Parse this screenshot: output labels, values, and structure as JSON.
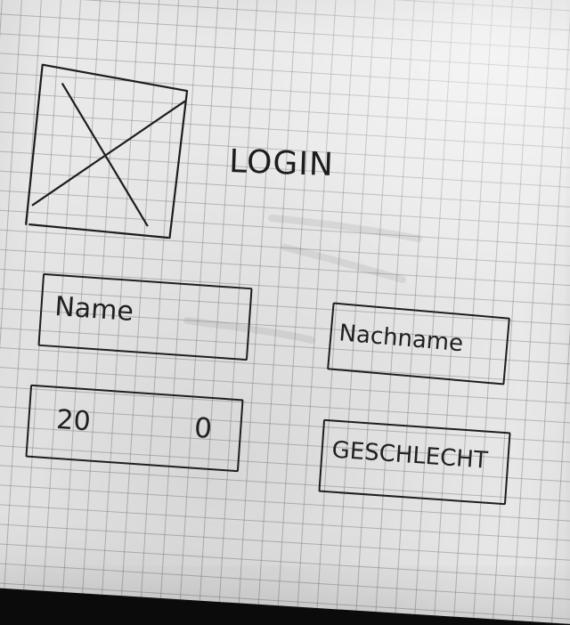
{
  "sketch": {
    "title": "LOGIN",
    "name_field_label": "Name",
    "lastname_field_label": "Nachname",
    "age_field_value": "20",
    "age_stepper_symbol": "0",
    "gender_field_label": "GESCHLECHT"
  },
  "image_placeholder": {
    "icon": "image-placeholder-icon"
  },
  "colors": {
    "ink": "#1d1d1d",
    "paper": "#e9e9e9",
    "grid": "#8f8f8f",
    "background": "#0b0b0b"
  }
}
